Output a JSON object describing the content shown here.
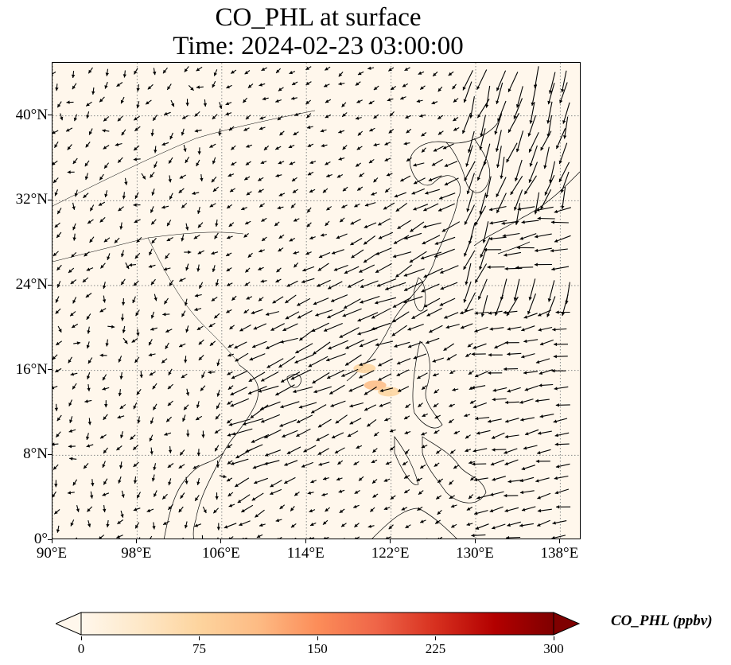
{
  "title": "CO_PHL at surface",
  "subtitle": "Time: 2024-02-23 03:00:00",
  "map": {
    "extent": {
      "lon_min": 90,
      "lon_max": 140,
      "lat_min": 0,
      "lat_max": 45
    },
    "gridlines": "dotted",
    "x_ticks": [
      "90°E",
      "98°E",
      "106°E",
      "114°E",
      "122°E",
      "130°E",
      "138°E"
    ],
    "y_ticks": [
      "0°",
      "8°N",
      "16°N",
      "24°N",
      "32°N",
      "40°N"
    ],
    "background_color": "#fff7ec",
    "wind_vectors": "black quiver arrows",
    "colors": {
      "land_lines": "#000000",
      "grid": "#888888"
    }
  },
  "colorbar": {
    "label": "CO_PHL (ppbv)",
    "ticks": [
      "0",
      "75",
      "150",
      "225",
      "300"
    ],
    "min": 0,
    "max": 300,
    "colormap": "OrRd",
    "extend": "both"
  },
  "chart_data": {
    "type": "heatmap",
    "title": "CO_PHL at surface",
    "subtitle": "Time: 2024-02-23 03:00:00",
    "variable": "CO_PHL",
    "units": "ppbv",
    "x_range_lon": [
      90,
      140
    ],
    "y_range_lat": [
      0,
      45
    ],
    "color_range": [
      0,
      300
    ],
    "hotspots": [
      {
        "lon": 120.5,
        "lat": 14.6,
        "value": 60
      },
      {
        "lon": 119.5,
        "lat": 16.2,
        "value": 30
      },
      {
        "lon": 121.8,
        "lat": 14.0,
        "value": 40
      }
    ]
  }
}
